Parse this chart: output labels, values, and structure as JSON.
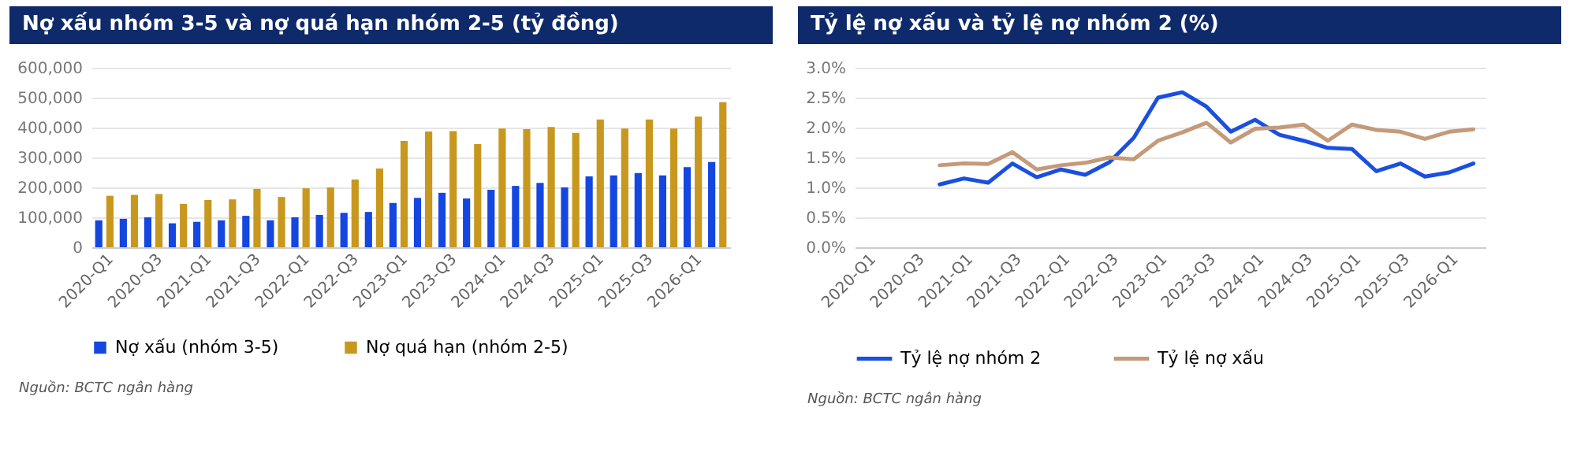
{
  "chart_data": [
    {
      "type": "bar",
      "title": "Nợ xấu nhóm 3-5 và nợ quá hạn nhóm 2-5 (tỷ đồng)",
      "categories": [
        "2020-Q1",
        null,
        "2020-Q3",
        null,
        "2021-Q1",
        null,
        "2021-Q3",
        null,
        "2022-Q1",
        null,
        "2022-Q3",
        null,
        "2023-Q1",
        null,
        "2023-Q3",
        null,
        "2024-Q1",
        null,
        "2024-Q3",
        null,
        "2025-Q1",
        null,
        "2025-Q3",
        null,
        "2026-Q1",
        null
      ],
      "series": [
        {
          "name": "Nợ xấu (nhóm 3-5)",
          "color": "#1446e0",
          "values": [
            90000,
            95000,
            100000,
            80000,
            85000,
            90000,
            105000,
            90000,
            100000,
            108000,
            115000,
            118000,
            148000,
            165000,
            182000,
            163000,
            192000,
            205000,
            215000,
            200000,
            237000,
            240000,
            248000,
            240000,
            268000,
            285000
          ]
        },
        {
          "name": "Nợ quá hạn (nhóm 2-5)",
          "color": "#c8981e",
          "values": [
            172000,
            175000,
            178000,
            145000,
            158000,
            160000,
            195000,
            168000,
            197000,
            200000,
            226000,
            263000,
            355000,
            387000,
            388000,
            345000,
            397000,
            395000,
            402000,
            382000,
            427000,
            397000,
            427000,
            397000,
            437000,
            485000
          ]
        }
      ],
      "ylim": [
        0,
        600000
      ],
      "yticks": [
        {
          "value": 0,
          "label": "0"
        },
        {
          "value": 100000,
          "label": "100,000"
        },
        {
          "value": 200000,
          "label": "200,000"
        },
        {
          "value": 300000,
          "label": "300,000"
        },
        {
          "value": 400000,
          "label": "400,000"
        },
        {
          "value": 500000,
          "label": "500,000"
        },
        {
          "value": 600000,
          "label": "600,000"
        }
      ],
      "grid": "y",
      "legend": "bottom",
      "annotations": [
        "Nguồn: BCTC ngân hàng"
      ]
    },
    {
      "type": "line",
      "title": "Tỷ lệ nợ xấu và tỷ lệ nợ nhóm 2 (%)",
      "categories": [
        "2020-Q1",
        null,
        "2020-Q3",
        null,
        "2021-Q1",
        null,
        "2021-Q3",
        null,
        "2022-Q1",
        null,
        "2022-Q3",
        null,
        "2023-Q1",
        null,
        "2023-Q3",
        null,
        "2024-Q1",
        null,
        "2024-Q3",
        null,
        "2025-Q1",
        null,
        "2025-Q3",
        null,
        "2026-Q1",
        null
      ],
      "series": [
        {
          "name": "Tỷ lệ nợ nhóm 2",
          "color": "#1a4fe0",
          "values": [
            null,
            null,
            null,
            1.05,
            1.15,
            1.08,
            1.4,
            1.17,
            1.3,
            1.21,
            1.42,
            1.83,
            2.5,
            2.59,
            2.35,
            1.93,
            2.13,
            1.88,
            1.78,
            1.66,
            1.64,
            1.27,
            1.4,
            1.18,
            1.25,
            1.4
          ]
        },
        {
          "name": "Tỷ lệ nợ xấu",
          "color": "#c49a7a",
          "values": [
            null,
            null,
            null,
            1.37,
            1.4,
            1.39,
            1.59,
            1.3,
            1.37,
            1.41,
            1.5,
            1.47,
            1.78,
            1.92,
            2.08,
            1.75,
            1.98,
            2.0,
            2.05,
            1.78,
            2.05,
            1.96,
            1.93,
            1.81,
            1.93,
            1.97
          ]
        }
      ],
      "ylim": [
        0,
        3
      ],
      "yticks": [
        {
          "value": 0,
          "label": "0.0%"
        },
        {
          "value": 0.5,
          "label": "0.5%"
        },
        {
          "value": 1,
          "label": "1.0%"
        },
        {
          "value": 1.5,
          "label": "1.5%"
        },
        {
          "value": 2,
          "label": "2.0%"
        },
        {
          "value": 2.5,
          "label": "2.5%"
        },
        {
          "value": 3,
          "label": "3.0%"
        }
      ],
      "grid": "y",
      "legend": "bottom",
      "marker": "none",
      "line_style": "solid",
      "annotations": [
        "Nguồn: BCTC ngân hàng"
      ]
    }
  ]
}
